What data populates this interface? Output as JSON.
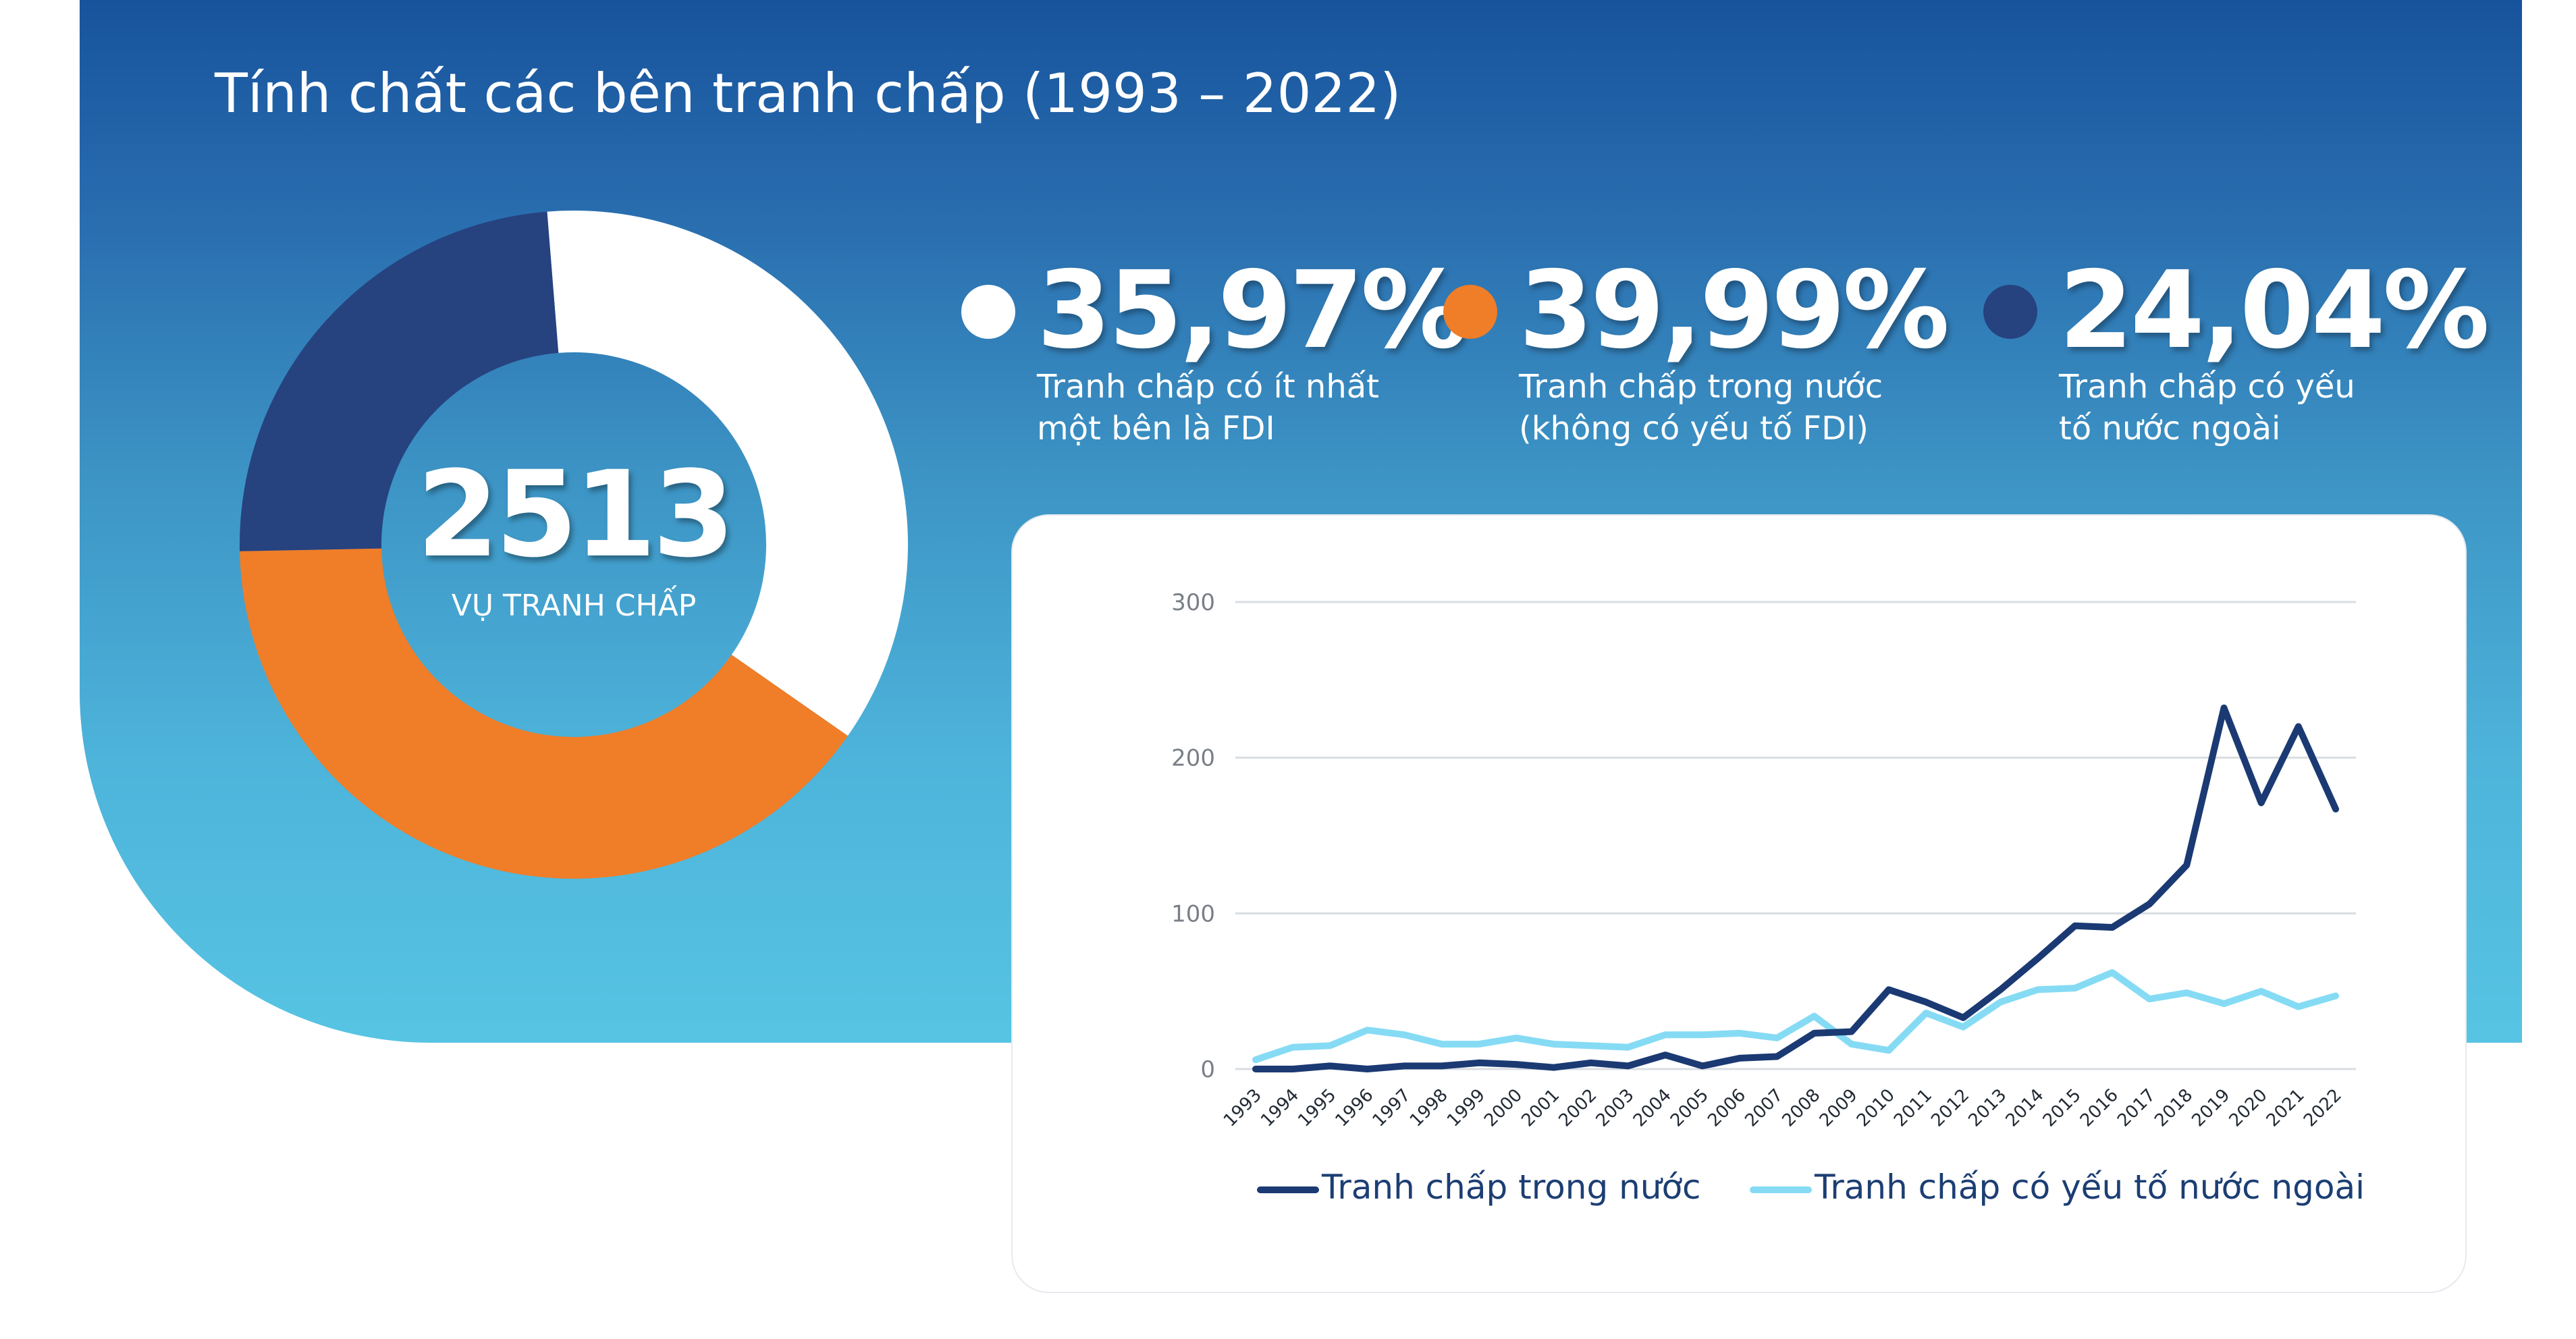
{
  "title": "Tính chất các bên tranh chấp (1993 – 2022)",
  "colors": {
    "white": "#ffffff",
    "orange": "#f07d27",
    "navy": "#26427f",
    "dark_line": "#1b3a73",
    "light_line": "#86dbf4"
  },
  "donut": {
    "total": "2513",
    "caption": "VỤ TRANH CHẤP"
  },
  "stats": [
    {
      "value": "35,97%",
      "desc": [
        "Tranh chấp có ít nhất",
        "một bên là FDI"
      ],
      "color": "#ffffff"
    },
    {
      "value": "39,99%",
      "desc": [
        "Tranh chấp trong nước",
        "(không có yếu tố FDI)"
      ],
      "color": "#f07d27"
    },
    {
      "value": "24,04%",
      "desc": [
        "Tranh chấp có yếu",
        "tố nước ngoài"
      ],
      "color": "#26427f"
    }
  ],
  "chart_data": [
    {
      "type": "pie",
      "slices": [
        {
          "label": "Tranh chấp có ít nhất một bên là FDI",
          "value": 35.97,
          "color": "#ffffff"
        },
        {
          "label": "Tranh chấp trong nước (không có yếu tố FDI)",
          "value": 39.99,
          "color": "#f07d27"
        },
        {
          "label": "Tranh chấp có yếu tố nước ngoài",
          "value": 24.04,
          "color": "#26427f"
        }
      ],
      "center_value": "2513",
      "center_label": "VỤ TRANH CHẤP"
    },
    {
      "type": "line",
      "x": [
        "1993",
        "1994",
        "1995",
        "1996",
        "1997",
        "1998",
        "1999",
        "2000",
        "2001",
        "2002",
        "2003",
        "2004",
        "2005",
        "2006",
        "2007",
        "2008",
        "2009",
        "2010",
        "2011",
        "2012",
        "2013",
        "2014",
        "2015",
        "2016",
        "2017",
        "2018",
        "2019",
        "2020",
        "2021",
        "2022"
      ],
      "series": [
        {
          "name": "Tranh chấp trong nước",
          "color": "#1b3a73",
          "values": [
            0,
            0,
            2,
            0,
            2,
            2,
            4,
            3,
            1,
            4,
            2,
            9,
            2,
            7,
            8,
            23,
            24,
            51,
            43,
            33,
            51,
            71,
            92,
            91,
            106,
            131,
            232,
            171,
            220,
            167
          ]
        },
        {
          "name": "Tranh chấp có yếu tố nước ngoài",
          "color": "#86dbf4",
          "values": [
            6,
            14,
            15,
            25,
            22,
            16,
            16,
            20,
            16,
            15,
            14,
            22,
            22,
            23,
            20,
            34,
            16,
            12,
            36,
            27,
            43,
            51,
            52,
            62,
            45,
            49,
            42,
            50,
            40,
            47
          ]
        }
      ],
      "ylim": [
        0,
        300
      ],
      "yticks": [
        "0",
        "100",
        "200",
        "300"
      ],
      "grid": true,
      "legend": "bottom"
    }
  ]
}
